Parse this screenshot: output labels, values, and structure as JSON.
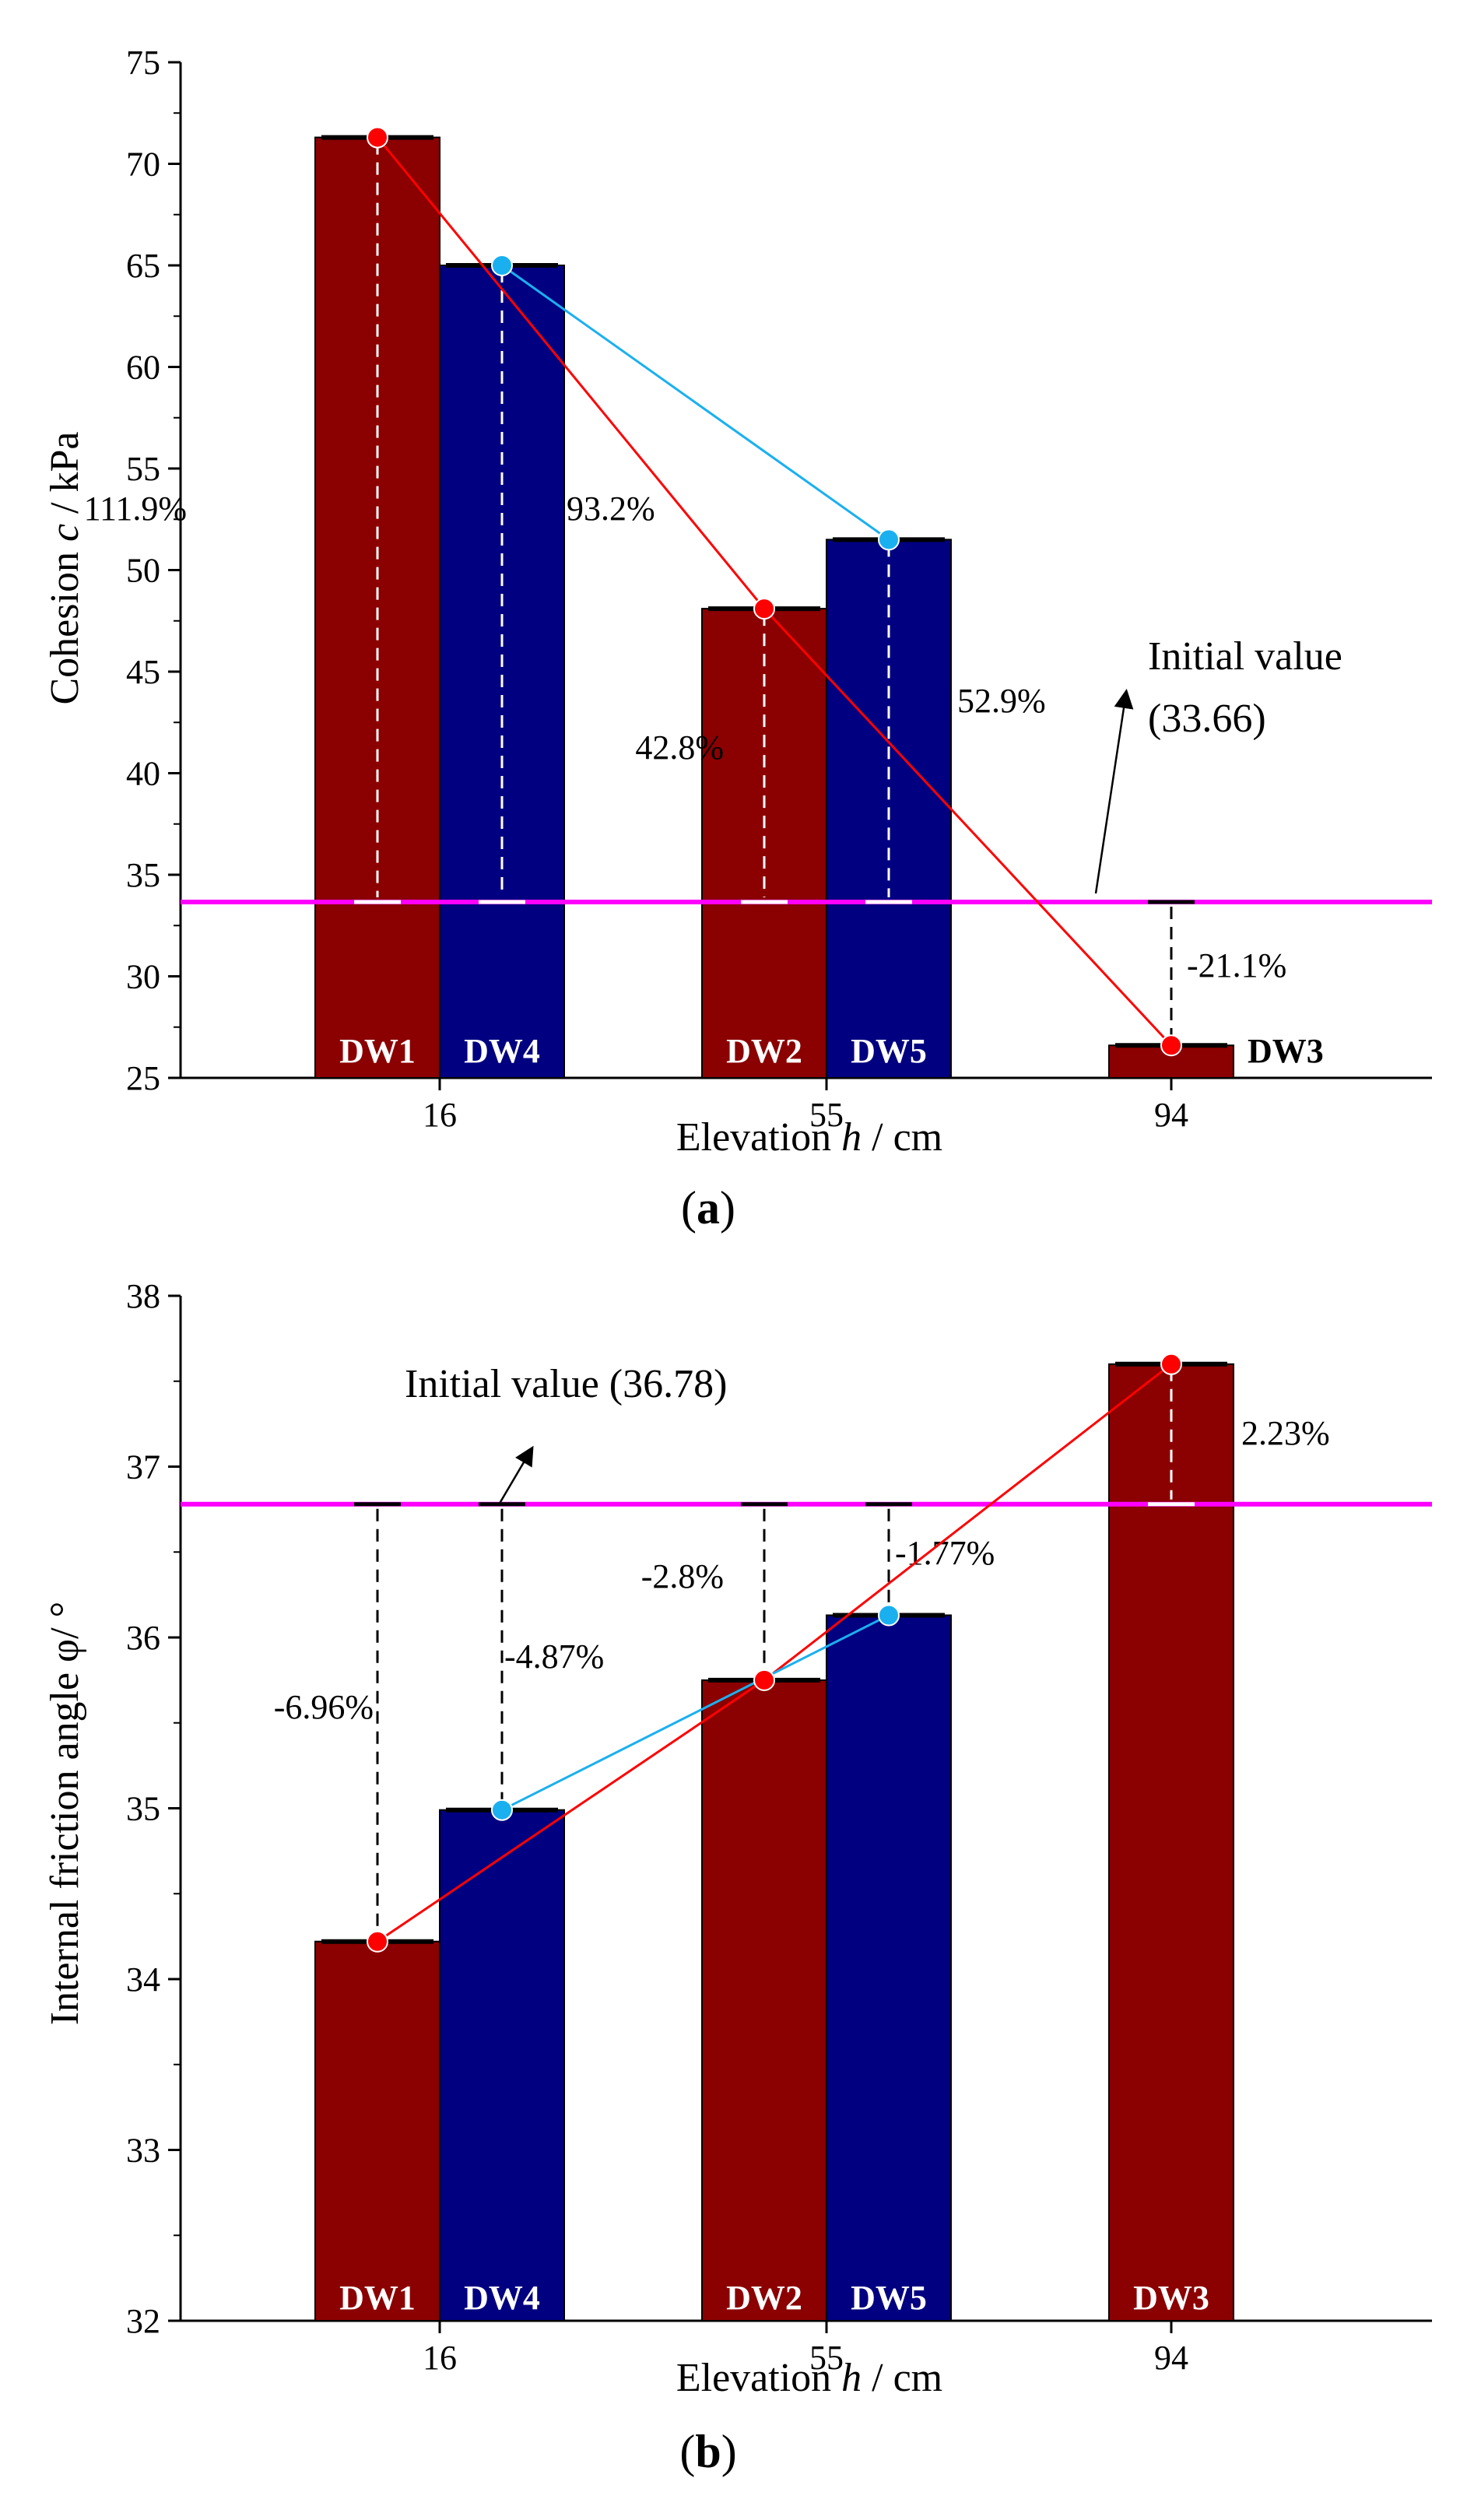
{
  "colors": {
    "bar_red": "#8b0000",
    "bar_blue": "#000080",
    "line_red": "#ff0000",
    "line_cyan": "#1ab0f0",
    "initial_line": "#ff00ff"
  },
  "chart_data": [
    {
      "id": "a",
      "type": "bar",
      "panel_label": "a",
      "title": "",
      "xlabel_pre": "Elevation ",
      "xlabel_var": "h",
      "xlabel_post": " / cm",
      "ylabel_pre": "Cohesion ",
      "ylabel_var": "c",
      "ylabel_post": " / kPa",
      "ylim": [
        25,
        75
      ],
      "yticks": [
        25,
        30,
        35,
        40,
        45,
        50,
        55,
        60,
        65,
        70,
        75
      ],
      "categories": [
        "16",
        "55",
        "94"
      ],
      "initial_value": 33.66,
      "initial_label_line1": "Initial value",
      "initial_label_line2": "(33.66)",
      "bars": [
        {
          "name": "DW1",
          "category": 0,
          "slot": "left",
          "value": 71.3,
          "color": "red",
          "pct": "111.9%"
        },
        {
          "name": "DW4",
          "category": 0,
          "slot": "right",
          "value": 65.0,
          "color": "blue",
          "pct": "93.2%"
        },
        {
          "name": "DW2",
          "category": 1,
          "slot": "left",
          "value": 48.1,
          "color": "red",
          "pct": "42.8%"
        },
        {
          "name": "DW5",
          "category": 1,
          "slot": "right",
          "value": 51.5,
          "color": "blue",
          "pct": "52.9%"
        },
        {
          "name": "DW3",
          "category": 2,
          "slot": "center",
          "value": 26.6,
          "color": "red",
          "pct": "-21.1%"
        }
      ],
      "series": [
        {
          "name": "red line",
          "points": [
            "DW1",
            "DW2",
            "DW3"
          ]
        },
        {
          "name": "cyan line",
          "points": [
            "DW4",
            "DW5"
          ]
        }
      ]
    },
    {
      "id": "b",
      "type": "bar",
      "panel_label": "b",
      "title": "",
      "xlabel_pre": "Elevation ",
      "xlabel_var": "h",
      "xlabel_post": " / cm",
      "ylabel_pre": "Internal friction angle φ/ °",
      "ylabel_var": "",
      "ylabel_post": "",
      "ylim": [
        32,
        38
      ],
      "yticks": [
        32,
        33,
        34,
        35,
        36,
        37,
        38
      ],
      "categories": [
        "16",
        "55",
        "94"
      ],
      "initial_value": 36.78,
      "initial_label_line1": "Initial value (36.78)",
      "initial_label_line2": "",
      "bars": [
        {
          "name": "DW1",
          "category": 0,
          "slot": "left",
          "value": 34.22,
          "color": "red",
          "pct": "-6.96%"
        },
        {
          "name": "DW4",
          "category": 0,
          "slot": "right",
          "value": 34.99,
          "color": "blue",
          "pct": "-4.87%"
        },
        {
          "name": "DW2",
          "category": 1,
          "slot": "left",
          "value": 35.75,
          "color": "red",
          "pct": "-2.8%"
        },
        {
          "name": "DW5",
          "category": 1,
          "slot": "right",
          "value": 36.13,
          "color": "blue",
          "pct": "-1.77%"
        },
        {
          "name": "DW3",
          "category": 2,
          "slot": "center",
          "value": 37.6,
          "color": "red",
          "pct": "2.23%"
        }
      ],
      "series": [
        {
          "name": "red line",
          "points": [
            "DW1",
            "DW2",
            "DW3"
          ]
        },
        {
          "name": "cyan line",
          "points": [
            "DW4",
            "DW5"
          ]
        }
      ]
    }
  ]
}
